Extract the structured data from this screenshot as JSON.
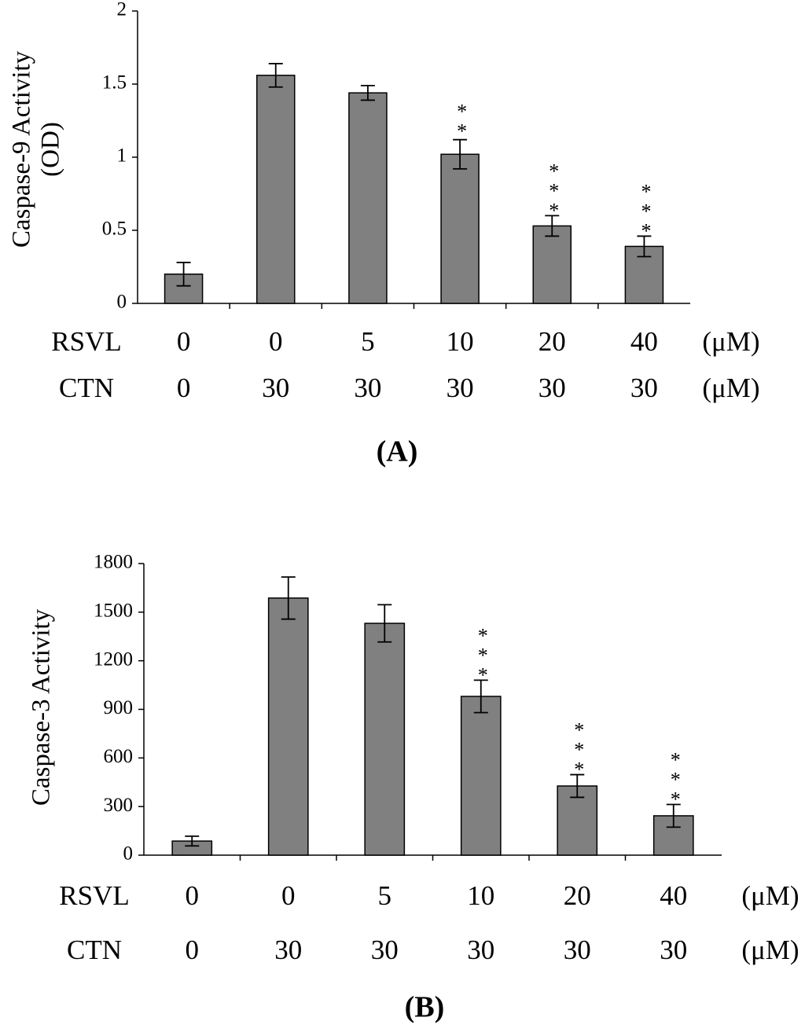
{
  "chart_data": [
    {
      "type": "bar",
      "panel": "(A)",
      "ylabel": [
        "Caspase-9 Activity",
        "(OD)"
      ],
      "categories": [
        null,
        null,
        null,
        null,
        null,
        null
      ],
      "values": [
        0.2,
        1.56,
        1.44,
        1.02,
        0.53,
        0.39
      ],
      "errors": [
        0.08,
        0.08,
        0.05,
        0.1,
        0.07,
        0.07
      ],
      "significance": [
        null,
        null,
        null,
        "**",
        "***",
        "***"
      ],
      "x_rows": [
        {
          "label": "RSVL",
          "values": [
            0,
            0,
            5,
            10,
            20,
            40
          ],
          "unit": "(μM)"
        },
        {
          "label": "CTN",
          "values": [
            0,
            30,
            30,
            30,
            30,
            30
          ],
          "unit": "(μM)"
        }
      ],
      "color": "#808080",
      "ylim": [
        0,
        2
      ],
      "yticks": [
        0,
        0.5,
        1,
        1.5,
        2
      ]
    },
    {
      "type": "bar",
      "panel": "(B)",
      "ylabel": [
        "Caspase-3 Activity"
      ],
      "categories": [
        null,
        null,
        null,
        null,
        null,
        null
      ],
      "values": [
        87,
        1587,
        1431,
        980,
        427,
        243
      ],
      "errors": [
        30,
        130,
        115,
        100,
        70,
        70
      ],
      "significance": [
        null,
        null,
        null,
        "***",
        "***",
        "***"
      ],
      "x_rows": [
        {
          "label": "RSVL",
          "values": [
            0,
            0,
            5,
            10,
            20,
            40
          ],
          "unit": "(μM)"
        },
        {
          "label": "CTN",
          "values": [
            0,
            30,
            30,
            30,
            30,
            30
          ],
          "unit": "(μM)"
        }
      ],
      "color": "#808080",
      "ylim": [
        0,
        1800
      ],
      "yticks": [
        0,
        300,
        600,
        900,
        1200,
        1500,
        1800
      ]
    }
  ]
}
